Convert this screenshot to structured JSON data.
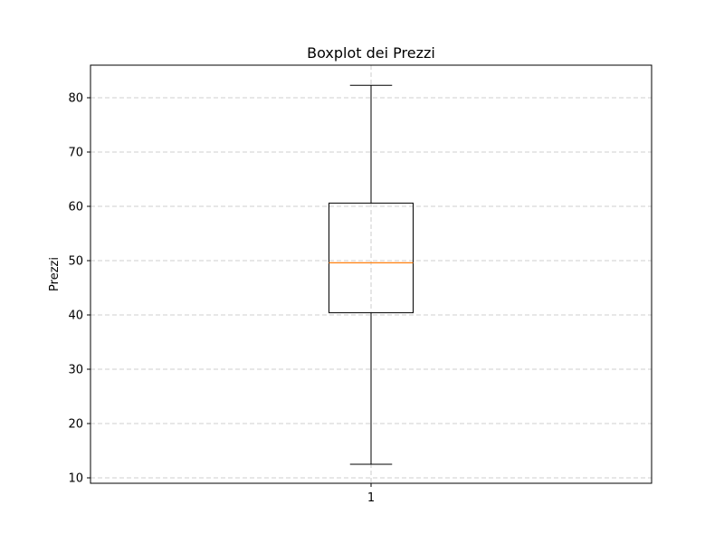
{
  "chart_data": {
    "type": "boxplot",
    "title": "Boxplot dei Prezzi",
    "xlabel": "",
    "ylabel": "Prezzi",
    "categories": [
      "1"
    ],
    "boxes": [
      {
        "category": "1",
        "whisker_low": 12.5,
        "q1": 40.4,
        "median": 49.6,
        "q3": 60.6,
        "whisker_high": 82.3
      }
    ],
    "ylim": [
      9.0,
      86.0
    ],
    "xlim": [
      0.5,
      1.5
    ],
    "yticks": [
      10,
      20,
      30,
      40,
      50,
      60,
      70,
      80
    ],
    "grid": true,
    "colors": {
      "box": "#000000",
      "median": "#ff7f0e",
      "grid": "#b0b0b0"
    }
  }
}
